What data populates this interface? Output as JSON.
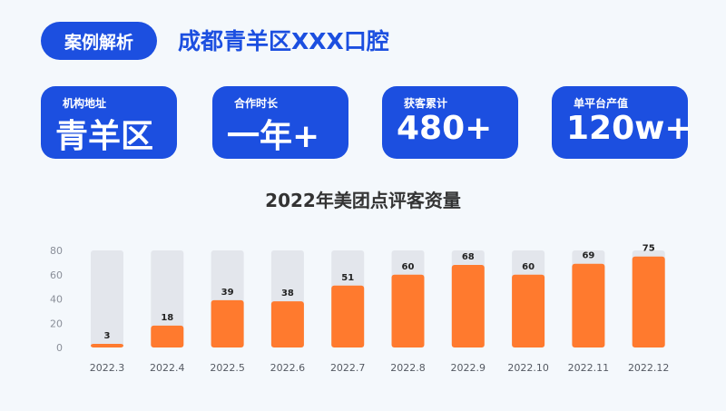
{
  "header": {
    "tag": "案例解析",
    "title": "成都青羊区XXX口腔"
  },
  "cards": [
    {
      "label": "机构地址",
      "value": "青羊区"
    },
    {
      "label": "合作时长",
      "value": "一年+"
    },
    {
      "label": "获客累计",
      "value": "480+"
    },
    {
      "label": "单平台产值",
      "value": "120w+"
    }
  ],
  "colors": {
    "primary": "#1c4fe0",
    "bar": "#ff7a2e",
    "bar_bg": "#e3e6ec"
  },
  "chart_data": {
    "type": "bar",
    "title": "2022年美团点评客资量",
    "categories": [
      "2022.3",
      "2022.4",
      "2022.5",
      "2022.6",
      "2022.7",
      "2022.8",
      "2022.9",
      "2022.10",
      "2022.11",
      "2022.12"
    ],
    "values": [
      3,
      18,
      39,
      38,
      51,
      60,
      68,
      60,
      69,
      75
    ],
    "ylim": [
      0,
      80
    ],
    "yticks": [
      0,
      20,
      40,
      60,
      80
    ],
    "grid": false,
    "data_labels": true
  }
}
